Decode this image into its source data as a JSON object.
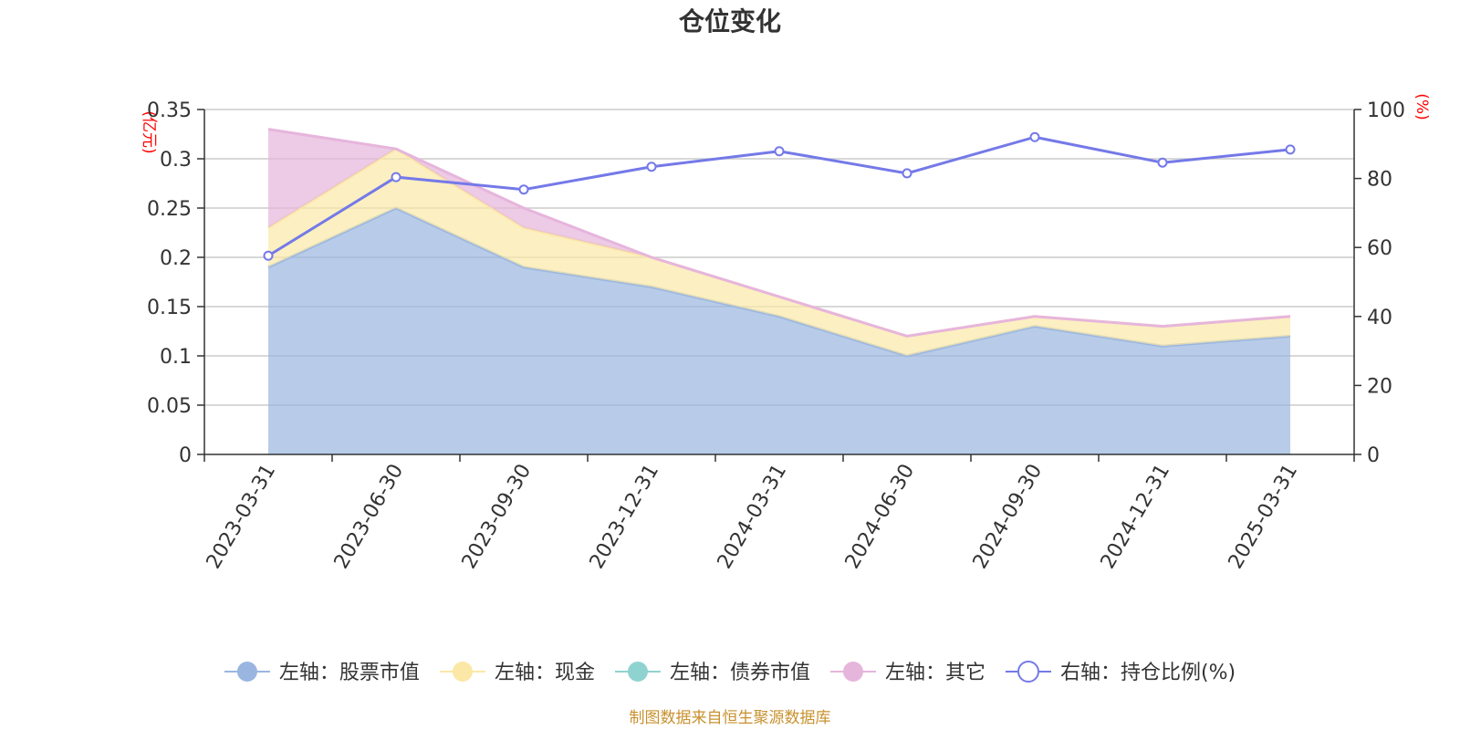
{
  "chart_data": {
    "type": "area",
    "title": "仓位变化",
    "categories": [
      "2023-03-31",
      "2023-06-30",
      "2023-09-30",
      "2023-12-31",
      "2024-03-31",
      "2024-06-30",
      "2024-09-30",
      "2024-12-31",
      "2025-03-31"
    ],
    "left_axis": {
      "unit": "(亿元)",
      "ylim": [
        0,
        0.35
      ],
      "ticks": [
        "0",
        "0.05",
        "0.1",
        "0.15",
        "0.2",
        "0.25",
        "0.3",
        "0.35"
      ],
      "tick_values": [
        0,
        0.05,
        0.1,
        0.15,
        0.2,
        0.25,
        0.3,
        0.35
      ]
    },
    "right_axis": {
      "unit": "(%)",
      "ylim": [
        0,
        100
      ],
      "ticks": [
        "0",
        "20",
        "40",
        "60",
        "80",
        "100"
      ],
      "tick_values": [
        0,
        20,
        40,
        60,
        80,
        100
      ]
    },
    "stacked": true,
    "series": [
      {
        "name": "左轴：股票市值",
        "axis": "left",
        "color": "#9ab6e0",
        "values": [
          0.19,
          0.25,
          0.19,
          0.17,
          0.14,
          0.1,
          0.13,
          0.11,
          0.12
        ]
      },
      {
        "name": "左轴：现金",
        "axis": "left",
        "color": "#fbe8a6",
        "values": [
          0.04,
          0.06,
          0.04,
          0.03,
          0.02,
          0.02,
          0.01,
          0.02,
          0.02
        ]
      },
      {
        "name": "左轴：债券市值",
        "axis": "left",
        "color": "#8fd3d1",
        "values": [
          0,
          0,
          0,
          0,
          0,
          0,
          0,
          0,
          0
        ]
      },
      {
        "name": "左轴：其它",
        "axis": "left",
        "color": "#e6b5dc",
        "values": [
          0.1,
          0.0,
          0.02,
          0.0,
          0.0,
          0.0,
          0.0,
          0.0,
          0.0
        ]
      },
      {
        "name": "右轴：持仓比例(%)",
        "axis": "right",
        "type": "line",
        "color": "#7479e8",
        "values": [
          57.6,
          80.4,
          76.8,
          83.4,
          87.9,
          81.5,
          92.0,
          84.6,
          88.4
        ]
      }
    ],
    "grid": true,
    "legend_position": "bottom",
    "source": "制图数据来自恒生聚源数据库"
  }
}
